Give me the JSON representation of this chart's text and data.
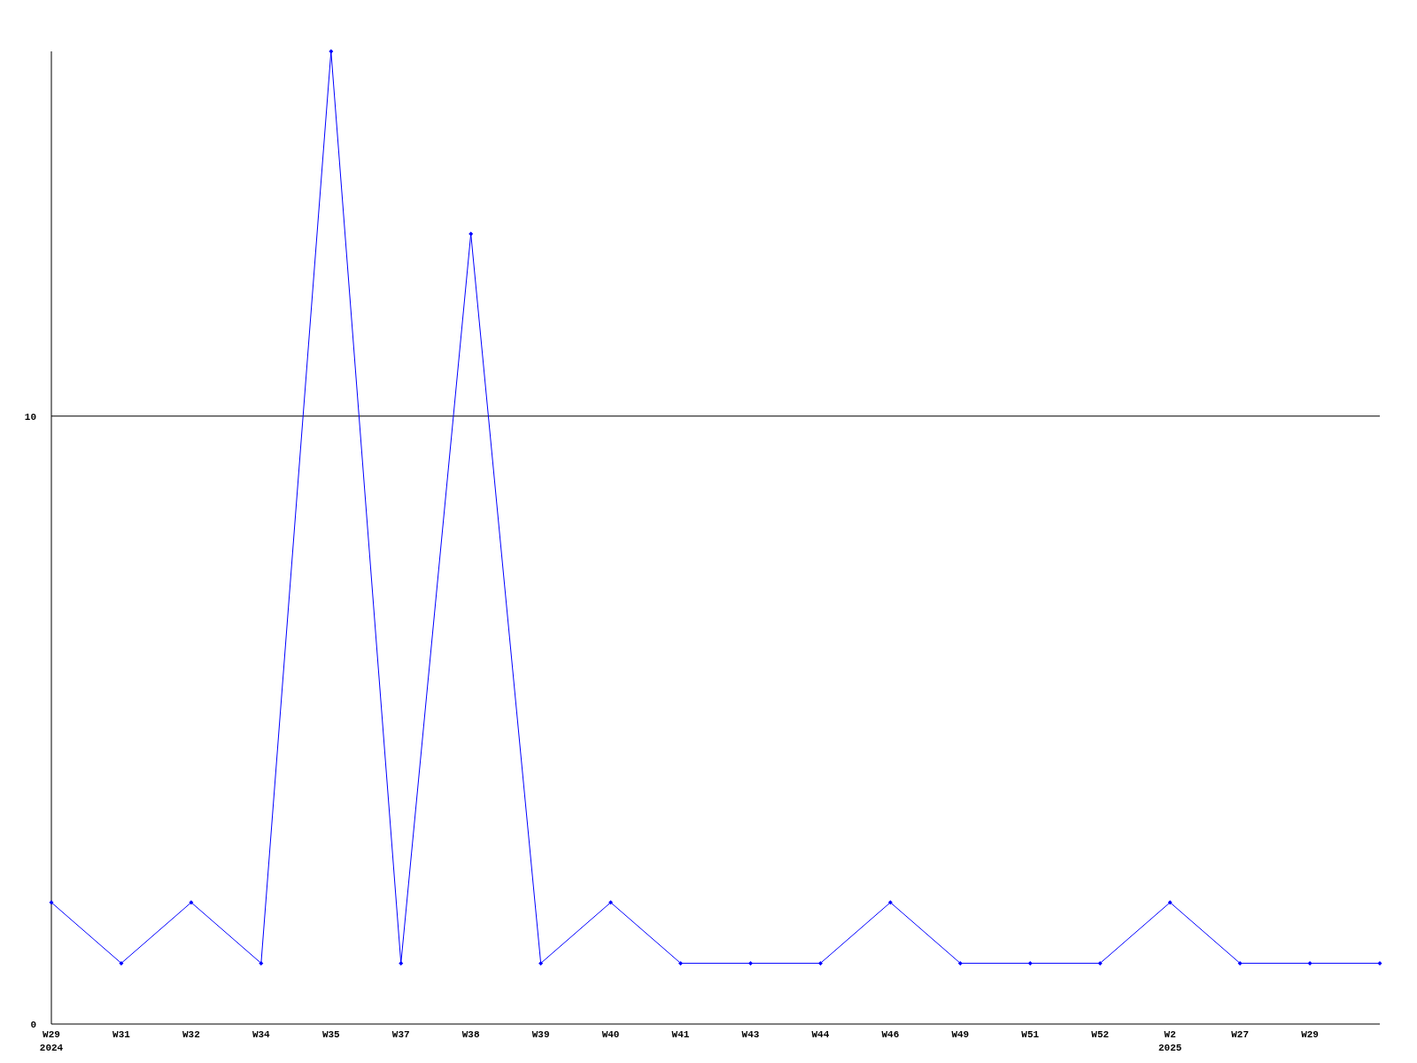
{
  "chart_data": {
    "type": "line",
    "categories": [
      "W29\n2024",
      "W31",
      "W32",
      "W34",
      "W35",
      "W37",
      "W38",
      "W39",
      "W40",
      "W41",
      "W43",
      "W44",
      "W46",
      "W49",
      "W51",
      "W52",
      "W2\n2025",
      "W27",
      "W29",
      null
    ],
    "series": [
      {
        "color": "#0000ff",
        "values": [
          2,
          1,
          2,
          1,
          16,
          1,
          13,
          1,
          2,
          1,
          1,
          1,
          2,
          1,
          1,
          1,
          2,
          1,
          1,
          1
        ]
      }
    ],
    "ylim": [
      0,
      16
    ],
    "yticks": [
      0,
      10
    ],
    "grid": "y",
    "marker": "diamond",
    "line_style": "solid"
  }
}
